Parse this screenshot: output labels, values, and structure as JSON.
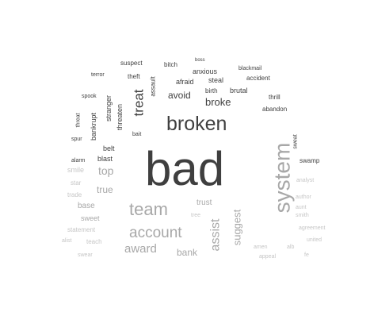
{
  "colors": {
    "dark": "#3f3f3f",
    "mid": "#6e6e6e",
    "light": "#a8a8a8",
    "faint": "#c6c6c6"
  },
  "words": [
    {
      "id": "bad",
      "text": "bad",
      "tone": "dark"
    },
    {
      "id": "system",
      "text": "system",
      "tone": "light"
    },
    {
      "id": "broken",
      "text": "broken",
      "tone": "dark"
    },
    {
      "id": "team",
      "text": "team",
      "tone": "light"
    },
    {
      "id": "account",
      "text": "account",
      "tone": "light"
    },
    {
      "id": "award",
      "text": "award",
      "tone": "light"
    },
    {
      "id": "treat",
      "text": "treat",
      "tone": "dark"
    },
    {
      "id": "assist",
      "text": "assist",
      "tone": "light"
    },
    {
      "id": "suggest",
      "text": "suggest",
      "tone": "light"
    },
    {
      "id": "broke",
      "text": "broke",
      "tone": "dark"
    },
    {
      "id": "avoid",
      "text": "avoid",
      "tone": "dark"
    },
    {
      "id": "top",
      "text": "top",
      "tone": "light"
    },
    {
      "id": "true",
      "text": "true",
      "tone": "light"
    },
    {
      "id": "bank",
      "text": "bank",
      "tone": "light"
    },
    {
      "id": "trust",
      "text": "trust",
      "tone": "light"
    },
    {
      "id": "base",
      "text": "base",
      "tone": "light"
    },
    {
      "id": "sweet",
      "text": "sweet",
      "tone": "light"
    },
    {
      "id": "smile",
      "text": "smile",
      "tone": "faint"
    },
    {
      "id": "stranger",
      "text": "stranger",
      "tone": "dark"
    },
    {
      "id": "threaten",
      "text": "threaten",
      "tone": "dark"
    },
    {
      "id": "bankrupt",
      "text": "bankrupt",
      "tone": "dark"
    },
    {
      "id": "assault",
      "text": "assault",
      "tone": "dark"
    },
    {
      "id": "afraid",
      "text": "afraid",
      "tone": "dark"
    },
    {
      "id": "steal",
      "text": "steal",
      "tone": "dark"
    },
    {
      "id": "brutal",
      "text": "brutal",
      "tone": "dark"
    },
    {
      "id": "birth",
      "text": "birth",
      "tone": "dark"
    },
    {
      "id": "anxious",
      "text": "anxious",
      "tone": "dark"
    },
    {
      "id": "accident",
      "text": "accident",
      "tone": "dark"
    },
    {
      "id": "blackmail",
      "text": "blackmail",
      "tone": "dark"
    },
    {
      "id": "suspect",
      "text": "suspect",
      "tone": "dark"
    },
    {
      "id": "bitch",
      "text": "bitch",
      "tone": "dark"
    },
    {
      "id": "boss",
      "text": "boss",
      "tone": "dark"
    },
    {
      "id": "theft",
      "text": "theft",
      "tone": "dark"
    },
    {
      "id": "terror",
      "text": "terror",
      "tone": "dark"
    },
    {
      "id": "spook",
      "text": "spook",
      "tone": "dark"
    },
    {
      "id": "threat",
      "text": "threat",
      "tone": "dark"
    },
    {
      "id": "spur",
      "text": "spur",
      "tone": "dark"
    },
    {
      "id": "bait",
      "text": "bait",
      "tone": "dark"
    },
    {
      "id": "belt",
      "text": "belt",
      "tone": "dark"
    },
    {
      "id": "blast",
      "text": "blast",
      "tone": "dark"
    },
    {
      "id": "alarm",
      "text": "alarm",
      "tone": "dark"
    },
    {
      "id": "thrill",
      "text": "thrill",
      "tone": "dark"
    },
    {
      "id": "abandon",
      "text": "abandon",
      "tone": "dark"
    },
    {
      "id": "sweat",
      "text": "sweat",
      "tone": "dark"
    },
    {
      "id": "swamp",
      "text": "swamp",
      "tone": "dark"
    },
    {
      "id": "star",
      "text": "star",
      "tone": "faint"
    },
    {
      "id": "trade",
      "text": "trade",
      "tone": "faint"
    },
    {
      "id": "statement",
      "text": "statement",
      "tone": "faint"
    },
    {
      "id": "alist",
      "text": "alist",
      "tone": "faint"
    },
    {
      "id": "teach",
      "text": "teach",
      "tone": "faint"
    },
    {
      "id": "swear",
      "text": "swear",
      "tone": "faint"
    },
    {
      "id": "tree",
      "text": "tree",
      "tone": "faint"
    },
    {
      "id": "analyst",
      "text": "analyst",
      "tone": "faint"
    },
    {
      "id": "author",
      "text": "author",
      "tone": "faint"
    },
    {
      "id": "aunt",
      "text": "aunt",
      "tone": "faint"
    },
    {
      "id": "smith",
      "text": "smith",
      "tone": "faint"
    },
    {
      "id": "agreement",
      "text": "agreement",
      "tone": "faint"
    },
    {
      "id": "united",
      "text": "united",
      "tone": "faint"
    },
    {
      "id": "amen",
      "text": "amen",
      "tone": "faint"
    },
    {
      "id": "alb",
      "text": "alb",
      "tone": "faint"
    },
    {
      "id": "appeal",
      "text": "appeal",
      "tone": "faint"
    },
    {
      "id": "fe",
      "text": "fe",
      "tone": "faint"
    }
  ]
}
